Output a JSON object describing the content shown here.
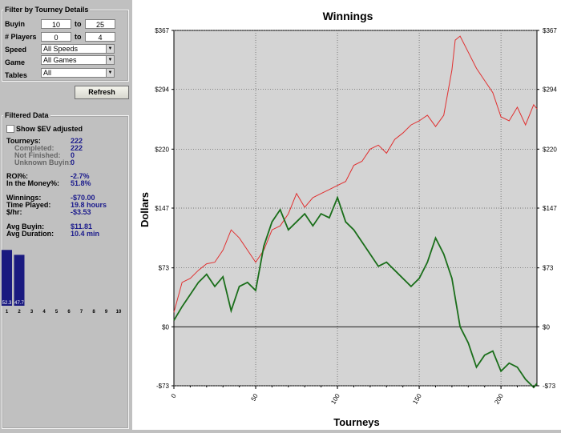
{
  "filter": {
    "title": "Filter by Tourney Details",
    "buyin": {
      "label": "Buyin",
      "from": "10",
      "to_label": "to",
      "to": "25"
    },
    "players": {
      "label": "# Players",
      "from": "0",
      "to_label": "to",
      "to": "4"
    },
    "speed": {
      "label": "Speed",
      "value": "All Speeds"
    },
    "game": {
      "label": "Game",
      "value": "All Games"
    },
    "tables": {
      "label": "Tables",
      "value": "All"
    },
    "refresh_label": "Refresh"
  },
  "filtered": {
    "title": "Filtered Data",
    "ev_label": "Show $EV adjusted",
    "tourneys": {
      "label": "Tourneys:",
      "value": "222"
    },
    "completed": {
      "label": "Completed:",
      "value": "222"
    },
    "not_finished": {
      "label": "Not Finished:",
      "value": "0"
    },
    "unknown_buyin": {
      "label": "Unknown Buyin:",
      "value": "0"
    },
    "roi": {
      "label": "ROI%:",
      "value": "-2.7%"
    },
    "itm": {
      "label": "In the Money%:",
      "value": "51.8%"
    },
    "winnings": {
      "label": "Winnings:",
      "value": "-$70.00"
    },
    "time_played": {
      "label": "Time Played:",
      "value": "19.8 hours"
    },
    "per_hr": {
      "label": "$/hr:",
      "value": "-$3.53"
    },
    "avg_buyin": {
      "label": "Avg Buyin:",
      "value": "$11.81"
    },
    "avg_duration": {
      "label": "Avg Duration:",
      "value": "10.4 min"
    }
  },
  "mini_chart": {
    "bars": [
      {
        "label": "1",
        "value": 52.3,
        "text": "52.3"
      },
      {
        "label": "2",
        "value": 47.7,
        "text": "47.7"
      }
    ],
    "slots": [
      "1",
      "2",
      "3",
      "4",
      "5",
      "6",
      "7",
      "8",
      "9",
      "10"
    ],
    "color": "#1a1a80"
  },
  "chart_data": {
    "type": "line",
    "title": "Winnings",
    "xlabel": "Tourneys",
    "ylabel": "Dollars",
    "xlim": [
      0,
      222
    ],
    "ylim": [
      -73,
      367
    ],
    "yticks": [
      367,
      294,
      220,
      147,
      73,
      0,
      -73
    ],
    "ytick_labels": [
      "$367",
      "$294",
      "$220",
      "$147",
      "$73",
      "$0",
      "-$73"
    ],
    "xticks": [
      0,
      50,
      100,
      150,
      200
    ],
    "xtick_labels": [
      "0",
      "50",
      "100",
      "150",
      "200"
    ],
    "grid": true,
    "background": "#d4d4d4",
    "series": [
      {
        "color": "#e03030",
        "x": [
          0,
          5,
          10,
          15,
          20,
          25,
          30,
          35,
          40,
          45,
          50,
          55,
          60,
          65,
          70,
          75,
          80,
          85,
          90,
          95,
          100,
          105,
          110,
          115,
          120,
          125,
          130,
          135,
          140,
          145,
          150,
          155,
          160,
          165,
          170,
          172,
          175,
          180,
          185,
          190,
          195,
          200,
          205,
          210,
          215,
          220,
          222
        ],
        "y": [
          18,
          55,
          60,
          70,
          78,
          80,
          95,
          120,
          110,
          95,
          80,
          95,
          120,
          125,
          140,
          165,
          148,
          160,
          165,
          170,
          175,
          180,
          200,
          205,
          220,
          225,
          215,
          232,
          240,
          250,
          255,
          262,
          248,
          262,
          318,
          355,
          360,
          340,
          320,
          305,
          290,
          260,
          255,
          272,
          250,
          275,
          270
        ]
      },
      {
        "color": "#1a6e1a",
        "x": [
          0,
          5,
          10,
          15,
          20,
          25,
          30,
          35,
          40,
          45,
          50,
          55,
          60,
          65,
          70,
          75,
          80,
          85,
          90,
          95,
          100,
          105,
          110,
          115,
          120,
          125,
          130,
          135,
          140,
          145,
          150,
          155,
          160,
          165,
          170,
          175,
          180,
          185,
          190,
          195,
          200,
          205,
          210,
          215,
          220,
          222
        ],
        "y": [
          8,
          25,
          40,
          55,
          65,
          50,
          62,
          20,
          50,
          55,
          45,
          100,
          130,
          145,
          120,
          130,
          140,
          125,
          140,
          135,
          160,
          130,
          120,
          105,
          90,
          75,
          80,
          70,
          60,
          50,
          60,
          80,
          110,
          90,
          60,
          0,
          -20,
          -50,
          -35,
          -30,
          -55,
          -45,
          -50,
          -65,
          -75,
          -70
        ]
      }
    ]
  }
}
